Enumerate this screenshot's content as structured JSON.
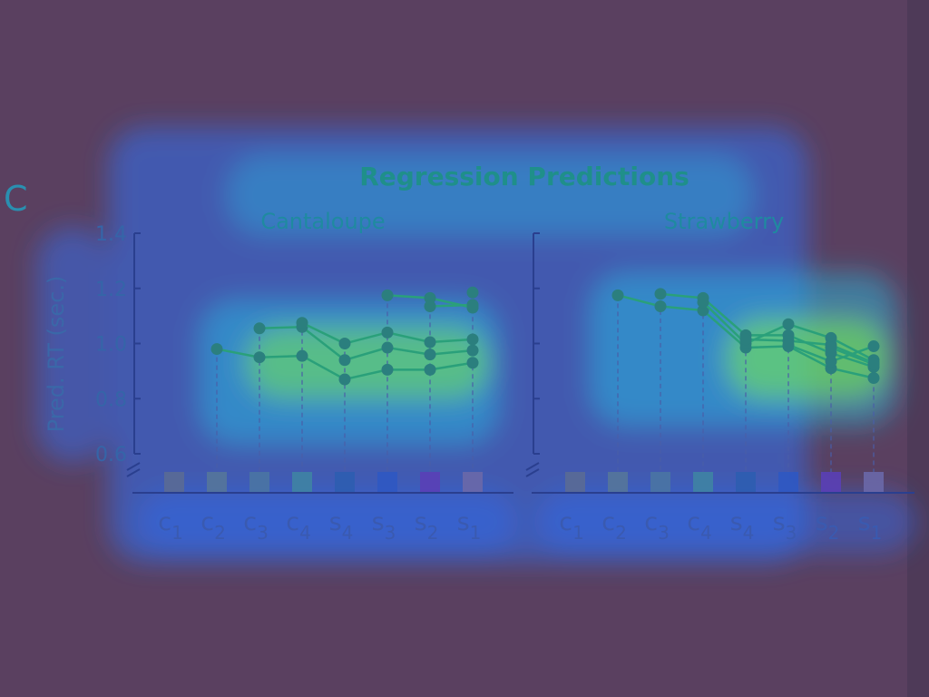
{
  "panel_letter": "C",
  "title": "Regression Predictions",
  "colors": {
    "background": "#5a4060",
    "heat_outer": "#2f6df0",
    "heat_mid": "#22c3e6",
    "heat_core": "#7cf24a",
    "text": "#1f8aa0",
    "axis": "#2a3f8f",
    "line": "#2aa07a",
    "marker": "#2b7f7e",
    "stem": "#4a5ea8",
    "squares": [
      "#5a6a95",
      "#55759a",
      "#4a74a3",
      "#3f83a3",
      "#2e5db0",
      "#2f58c2",
      "#5a3fb6",
      "#6a68a8"
    ]
  },
  "chart_data": [
    {
      "type": "line",
      "title": "Cantaloupe",
      "ylabel": "Pred. RT (sec.)",
      "ylim": [
        0.6,
        1.4
      ],
      "yticks": [
        "0.6",
        "0.8",
        "1.0",
        "1.2",
        "1.4"
      ],
      "categories": [
        {
          "base": "c",
          "sub": "1"
        },
        {
          "base": "c",
          "sub": "2"
        },
        {
          "base": "c",
          "sub": "3"
        },
        {
          "base": "c",
          "sub": "4"
        },
        {
          "base": "s",
          "sub": "4"
        },
        {
          "base": "s",
          "sub": "3"
        },
        {
          "base": "s",
          "sub": "2"
        },
        {
          "base": "s",
          "sub": "1"
        }
      ],
      "series": [
        {
          "values": [
            null,
            0.98,
            0.95,
            0.955,
            0.87,
            0.905,
            0.905,
            0.93
          ]
        },
        {
          "values": [
            null,
            null,
            1.055,
            1.06,
            0.94,
            0.985,
            0.96,
            0.975
          ]
        },
        {
          "values": [
            null,
            null,
            null,
            1.075,
            1.0,
            1.04,
            1.005,
            1.015
          ]
        },
        {
          "values": [
            null,
            null,
            null,
            null,
            null,
            1.175,
            1.165,
            1.13
          ]
        },
        {
          "values": [
            null,
            null,
            null,
            null,
            null,
            null,
            1.135,
            1.14
          ]
        },
        {
          "values": [
            null,
            null,
            null,
            null,
            null,
            null,
            null,
            1.185
          ]
        }
      ]
    },
    {
      "type": "line",
      "title": "Strawberry",
      "ylim": [
        0.6,
        1.4
      ],
      "categories": [
        {
          "base": "c",
          "sub": "1"
        },
        {
          "base": "c",
          "sub": "2"
        },
        {
          "base": "c",
          "sub": "3"
        },
        {
          "base": "c",
          "sub": "4"
        },
        {
          "base": "s",
          "sub": "4"
        },
        {
          "base": "s",
          "sub": "3"
        },
        {
          "base": "s",
          "sub": "2"
        },
        {
          "base": "s",
          "sub": "1"
        }
      ],
      "series": [
        {
          "values": [
            null,
            1.175,
            1.135,
            1.12,
            0.985,
            0.99,
            0.91,
            0.875
          ]
        },
        {
          "values": [
            null,
            null,
            1.18,
            1.165,
            1.03,
            1.03,
            0.965,
            0.915
          ]
        },
        {
          "values": [
            null,
            null,
            null,
            1.15,
            1.0,
            1.07,
            1.02,
            0.94
          ]
        },
        {
          "values": [
            null,
            null,
            null,
            null,
            1.015,
            1.01,
            0.995,
            0.93
          ]
        },
        {
          "values": [
            null,
            null,
            null,
            null,
            null,
            0.995,
            0.935,
            0.99
          ]
        },
        {
          "values": [
            null,
            null,
            null,
            null,
            null,
            null,
            0.985,
            0.925
          ]
        }
      ]
    }
  ]
}
